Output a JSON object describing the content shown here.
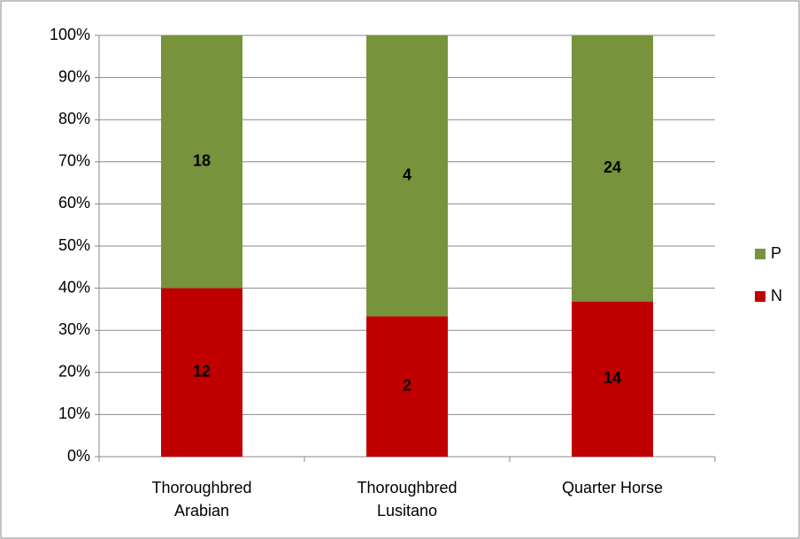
{
  "chart_data": {
    "type": "bar",
    "stacking": "percent",
    "categories": [
      "Thoroughbred Arabian",
      "Thoroughbred Lusitano",
      "Quarter Horse"
    ],
    "series": [
      {
        "name": "N",
        "color": "#c00000",
        "values": [
          12,
          2,
          14
        ]
      },
      {
        "name": "P",
        "color": "#77933c",
        "values": [
          18,
          4,
          24
        ]
      }
    ],
    "ylim": [
      0,
      100
    ],
    "yticks": [
      {
        "value": 0,
        "label": "0%"
      },
      {
        "value": 10,
        "label": "10%"
      },
      {
        "value": 20,
        "label": "20%"
      },
      {
        "value": 30,
        "label": "30%"
      },
      {
        "value": 40,
        "label": "40%"
      },
      {
        "value": 50,
        "label": "50%"
      },
      {
        "value": 60,
        "label": "60%"
      },
      {
        "value": 70,
        "label": "70%"
      },
      {
        "value": 80,
        "label": "80%"
      },
      {
        "value": 90,
        "label": "90%"
      },
      {
        "value": 100,
        "label": "100%"
      }
    ],
    "grid": true,
    "legend": "right"
  }
}
